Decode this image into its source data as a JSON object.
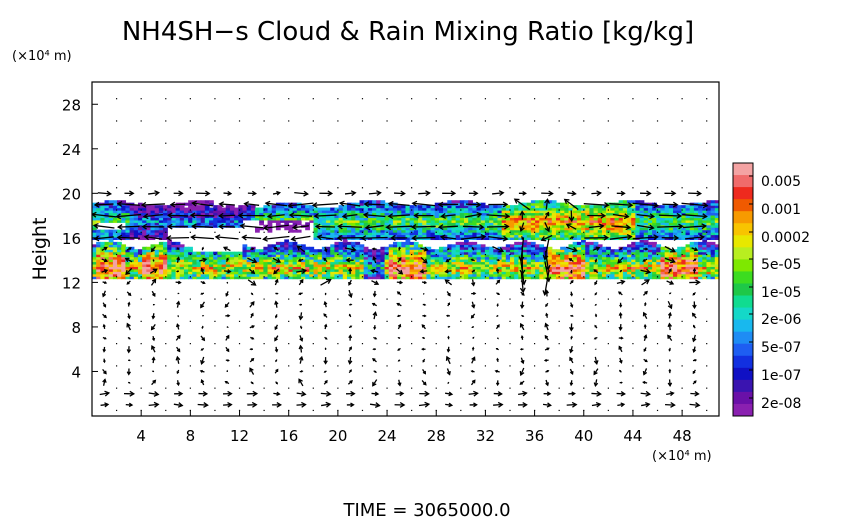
{
  "chart_data": {
    "type": "heatmap",
    "title": "NH4SH−s Cloud & Rain Mixing Ratio [kg/kg]",
    "ylabel": "Height",
    "xlabel": "",
    "y_unit": "(×10⁴ m)",
    "x_unit": "(×10⁴ m)",
    "xlim": [
      0,
      51
    ],
    "ylim": [
      0,
      30
    ],
    "x_ticks": [
      "4",
      "8",
      "12",
      "16",
      "20",
      "24",
      "28",
      "32",
      "36",
      "40",
      "44",
      "48"
    ],
    "x_tick_values": [
      4,
      8,
      12,
      16,
      20,
      24,
      28,
      32,
      36,
      40,
      44,
      48
    ],
    "y_ticks": [
      "4",
      "8",
      "12",
      "16",
      "20",
      "24",
      "28"
    ],
    "y_tick_values": [
      4,
      8,
      12,
      16,
      20,
      24,
      28
    ],
    "grid": true,
    "colorbar": {
      "labels": [
        "0.005",
        "0.001",
        "0.0002",
        "5e-05",
        "1e-05",
        "2e-06",
        "5e-07",
        "1e-07",
        "2e-08"
      ],
      "colors": [
        "#f4a3a3",
        "#f06b6b",
        "#ee2a1e",
        "#f05a00",
        "#f79a00",
        "#f8c400",
        "#e8e800",
        "#b8ee20",
        "#7ee800",
        "#3cdc20",
        "#1ec848",
        "#10dc90",
        "#14d8c8",
        "#18b8ee",
        "#1e8cf4",
        "#1e5ef2",
        "#1230e0",
        "#1010c4",
        "#3a14b0",
        "#6a10a8",
        "#8a20b0"
      ]
    },
    "bands": [
      {
        "name": "upper cloud layer",
        "x_range": [
          0,
          51
        ],
        "y_range": [
          15.5,
          19.2
        ]
      },
      {
        "name": "lower cloud layer",
        "x_range": [
          0,
          51
        ],
        "y_range": [
          12,
          15.5
        ]
      }
    ],
    "annotation": "wind vectors"
  },
  "footer": {
    "time_label": "TIME = 3065000.0"
  }
}
